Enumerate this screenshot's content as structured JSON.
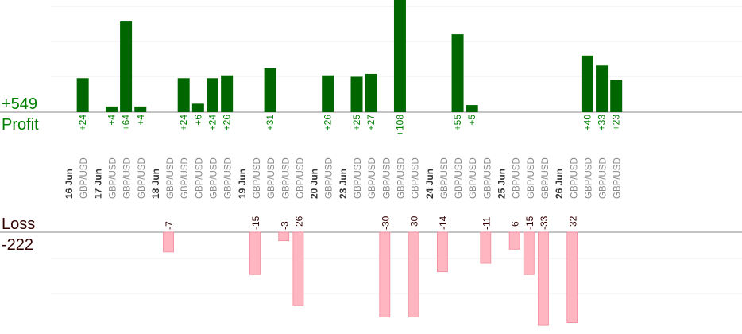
{
  "chart_data": {
    "type": "bar",
    "profit": {
      "total": "+549",
      "label": "Profit",
      "color": "#006600",
      "label_color": "#008000"
    },
    "loss": {
      "total": "-222",
      "label": "Loss",
      "color": "#ffb6c1",
      "label_color": "#330000"
    },
    "columns": [
      {
        "date": "16 Jun"
      },
      {
        "pair": "GBP/USD",
        "value": 24
      },
      {
        "date": "17 Jun"
      },
      {
        "pair": "GBP/USD",
        "value": 4
      },
      {
        "pair": "GBP/USD",
        "value": 64
      },
      {
        "pair": "GBP/USD",
        "value": 4
      },
      {
        "date": "18 Jun"
      },
      {
        "pair": "GBP/USD",
        "value": -7
      },
      {
        "pair": "GBP/USD",
        "value": 24
      },
      {
        "pair": "GBP/USD",
        "value": 6
      },
      {
        "pair": "GBP/USD",
        "value": 24
      },
      {
        "pair": "GBP/USD",
        "value": 26
      },
      {
        "date": "19 Jun"
      },
      {
        "pair": "GBP/USD",
        "value": -15
      },
      {
        "pair": "GBP/USD",
        "value": 31
      },
      {
        "pair": "GBP/USD",
        "value": -3
      },
      {
        "pair": "GBP/USD",
        "value": -26
      },
      {
        "date": "20 Jun"
      },
      {
        "pair": "GBP/USD",
        "value": 26
      },
      {
        "date": "23 Jun"
      },
      {
        "pair": "GBP/USD",
        "value": 25
      },
      {
        "pair": "GBP/USD",
        "value": 27
      },
      {
        "pair": "GBP/USD",
        "value": -30
      },
      {
        "pair": "GBP/USD",
        "value": 108
      },
      {
        "pair": "GBP/USD",
        "value": -30
      },
      {
        "date": "24 Jun"
      },
      {
        "pair": "GBP/USD",
        "value": -14
      },
      {
        "pair": "GBP/USD",
        "value": 55
      },
      {
        "pair": "GBP/USD",
        "value": 5
      },
      {
        "pair": "GBP/USD",
        "value": -11
      },
      {
        "date": "25 Jun"
      },
      {
        "pair": "GBP/USD",
        "value": -6
      },
      {
        "pair": "GBP/USD",
        "value": -15
      },
      {
        "pair": "GBP/USD",
        "value": -33
      },
      {
        "date": "26 Jun"
      },
      {
        "pair": "GBP/USD",
        "value": -32
      },
      {
        "pair": "GBP/USD",
        "value": 40
      },
      {
        "pair": "GBP/USD",
        "value": 33
      },
      {
        "pair": "GBP/USD",
        "value": 23
      }
    ]
  }
}
